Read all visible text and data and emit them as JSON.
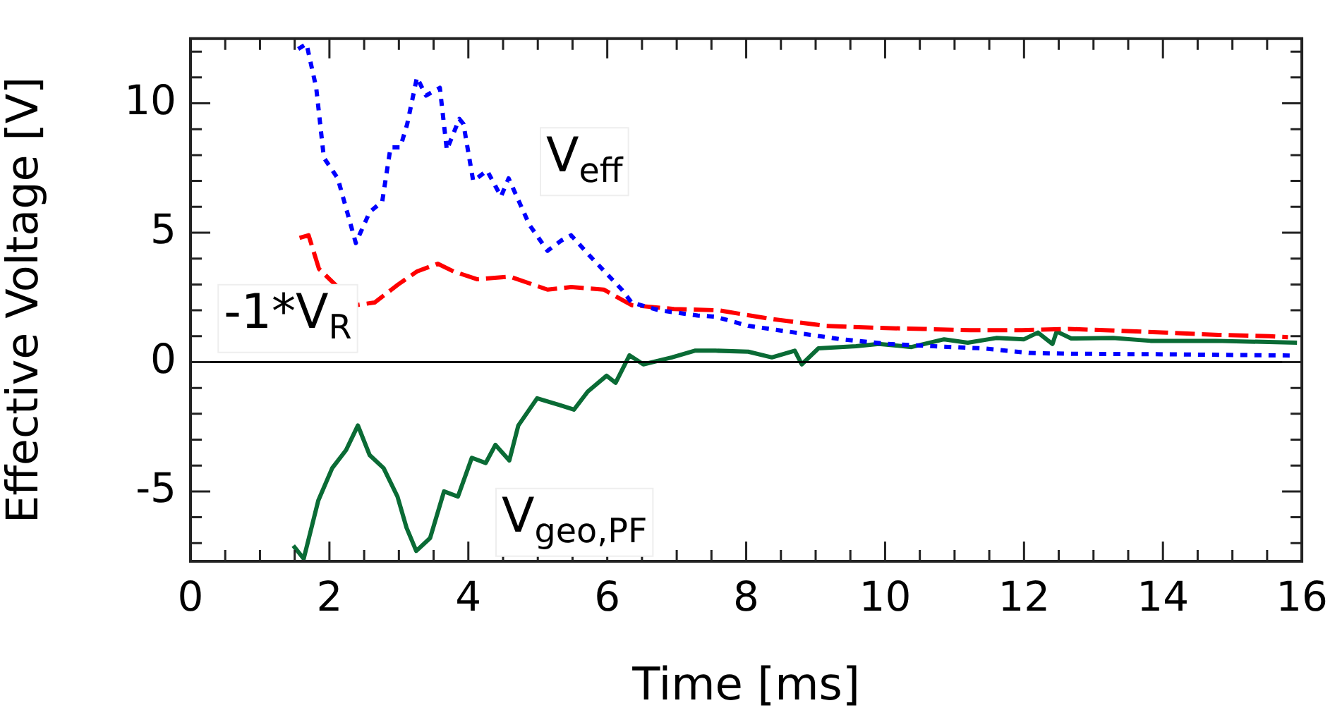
{
  "chart_data": {
    "type": "line",
    "xlabel": "Time [ms]",
    "ylabel": "Effective Voltage [V]",
    "xlim": [
      0,
      16
    ],
    "ylim": [
      -7.7,
      12.5
    ],
    "xticks": [
      0,
      {
        "value": 0.5,
        "label": null
      },
      {
        "value": 1,
        "label": null
      },
      {
        "value": 1.5,
        "label": null
      },
      2,
      {
        "value": 2.5,
        "label": null
      },
      {
        "value": 3,
        "label": null
      },
      {
        "value": 3.5,
        "label": null
      },
      4,
      {
        "value": 4.5,
        "label": null
      },
      {
        "value": 5,
        "label": null
      },
      {
        "value": 5.5,
        "label": null
      },
      6,
      {
        "value": 6.5,
        "label": null
      },
      {
        "value": 7,
        "label": null
      },
      {
        "value": 7.5,
        "label": null
      },
      8,
      {
        "value": 8.5,
        "label": null
      },
      {
        "value": 9,
        "label": null
      },
      {
        "value": 9.5,
        "label": null
      },
      10,
      {
        "value": 10.5,
        "label": null
      },
      {
        "value": 11,
        "label": null
      },
      {
        "value": 11.5,
        "label": null
      },
      12,
      {
        "value": 12.5,
        "label": null
      },
      {
        "value": 13,
        "label": null
      },
      {
        "value": 13.5,
        "label": null
      },
      14,
      {
        "value": 14.5,
        "label": null
      },
      {
        "value": 15,
        "label": null
      },
      {
        "value": 15.5,
        "label": null
      },
      16
    ],
    "yticks": [
      {
        "value": -7,
        "label": null
      },
      {
        "value": -6,
        "label": null
      },
      -5,
      {
        "value": -4,
        "label": null
      },
      {
        "value": -3,
        "label": null
      },
      {
        "value": -2,
        "label": null
      },
      {
        "value": -1,
        "label": null
      },
      0,
      {
        "value": 1,
        "label": null
      },
      {
        "value": 2,
        "label": null
      },
      {
        "value": 3,
        "label": null
      },
      {
        "value": 4,
        "label": null
      },
      5,
      {
        "value": 6,
        "label": null
      },
      {
        "value": 7,
        "label": null
      },
      {
        "value": 8,
        "label": null
      },
      {
        "value": 9,
        "label": null
      },
      10,
      {
        "value": 11,
        "label": null
      },
      {
        "value": 12,
        "label": null
      }
    ],
    "grid": false,
    "legend": false,
    "marker": "none",
    "ref_lines": [
      {
        "axis": "y",
        "value": 0,
        "color": "#000000",
        "line_style": "solid"
      }
    ],
    "series": [
      {
        "name": "V$_{eff}$",
        "color": "#0000ff",
        "line_style": "dotted",
        "x": [
          1.55,
          1.67,
          1.81,
          1.92,
          2.12,
          2.38,
          2.58,
          2.76,
          2.88,
          3.02,
          3.12,
          3.26,
          3.39,
          3.59,
          3.69,
          3.87,
          3.93,
          4.07,
          4.27,
          4.47,
          4.58,
          4.68,
          4.88,
          5.14,
          5.34,
          5.48,
          5.75,
          6.21,
          6.35,
          6.75,
          7.3,
          7.56,
          8.03,
          8.7,
          9.37,
          10.04,
          10.7,
          11.4,
          12.07,
          12.7,
          14.07,
          15.9
        ],
        "values": [
          12.1,
          12.3,
          10.6,
          7.9,
          7.1,
          4.6,
          5.8,
          6.2,
          8.3,
          8.3,
          9.2,
          11.0,
          10.3,
          10.6,
          8.2,
          9.4,
          9.2,
          7.0,
          7.4,
          6.4,
          7.1,
          6.5,
          5.3,
          4.3,
          4.7,
          4.9,
          4.1,
          2.8,
          2.3,
          2.0,
          1.8,
          1.75,
          1.4,
          1.14,
          0.88,
          0.7,
          0.61,
          0.53,
          0.35,
          0.32,
          0.3,
          0.25
        ]
      },
      {
        "name": "-1*V$_{R}$",
        "color": "#ff0000",
        "line_style": "dashed",
        "x": [
          1.57,
          1.7,
          1.85,
          2.12,
          2.38,
          2.65,
          2.99,
          3.26,
          3.56,
          3.79,
          4.13,
          4.6,
          5.14,
          5.48,
          5.95,
          6.35,
          6.96,
          7.6,
          8.35,
          9.15,
          9.89,
          10.56,
          11.23,
          11.97,
          12.64,
          13.38,
          14.05,
          14.8,
          15.53,
          15.8
        ],
        "values": [
          4.8,
          4.9,
          3.6,
          2.9,
          2.2,
          2.3,
          3.0,
          3.5,
          3.8,
          3.5,
          3.2,
          3.3,
          2.8,
          2.9,
          2.8,
          2.2,
          2.05,
          2.0,
          1.67,
          1.4,
          1.32,
          1.28,
          1.23,
          1.23,
          1.28,
          1.21,
          1.14,
          1.05,
          1.0,
          0.96
        ]
      },
      {
        "name": "V$_{geo,PF}$",
        "color": "#0a6b35",
        "line_style": "solid",
        "x": [
          1.48,
          1.63,
          1.84,
          2.04,
          2.24,
          2.41,
          2.58,
          2.78,
          2.98,
          3.11,
          3.25,
          3.45,
          3.65,
          3.85,
          4.05,
          4.25,
          4.39,
          4.59,
          4.72,
          4.99,
          5.32,
          5.52,
          5.72,
          5.99,
          6.12,
          6.32,
          6.52,
          6.93,
          7.26,
          7.56,
          8.03,
          8.37,
          8.7,
          8.8,
          9.04,
          9.58,
          9.91,
          10.38,
          10.85,
          11.19,
          11.6,
          12.0,
          12.2,
          12.41,
          12.47,
          12.68,
          13.28,
          13.82,
          14.76,
          15.93
        ],
        "values": [
          -7.1,
          -7.6,
          -5.35,
          -4.1,
          -3.4,
          -2.45,
          -3.6,
          -4.1,
          -5.2,
          -6.4,
          -7.3,
          -6.8,
          -5.0,
          -5.2,
          -3.7,
          -3.9,
          -3.2,
          -3.8,
          -2.45,
          -1.4,
          -1.67,
          -1.84,
          -1.14,
          -0.53,
          -0.8,
          0.26,
          -0.09,
          0.18,
          0.44,
          0.44,
          0.4,
          0.18,
          0.44,
          -0.09,
          0.53,
          0.61,
          0.7,
          0.58,
          0.88,
          0.75,
          0.93,
          0.88,
          1.14,
          0.7,
          1.18,
          0.91,
          0.93,
          0.82,
          0.82,
          0.75
        ]
      }
    ]
  }
}
